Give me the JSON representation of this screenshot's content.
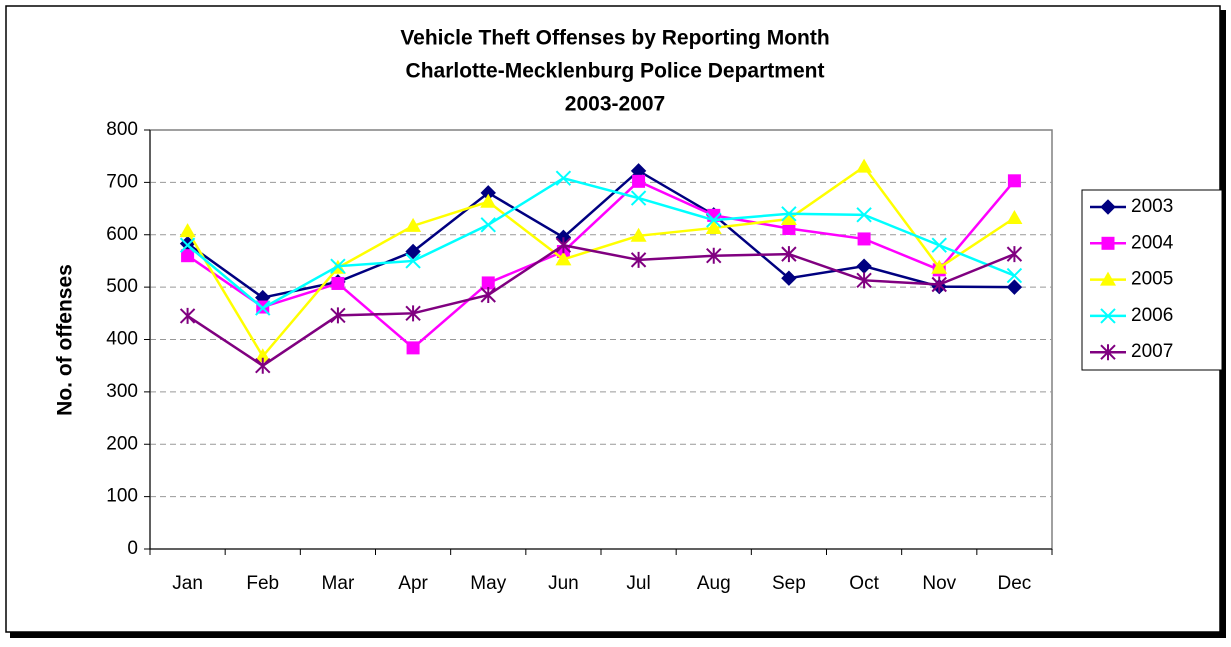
{
  "chart_data": {
    "type": "line",
    "title": [
      "Vehicle Theft Offenses by Reporting Month",
      "Charlotte-Mecklenburg Police Department",
      "2003-2007"
    ],
    "y_label": "No. of offenses",
    "categories": [
      "Jan",
      "Feb",
      "Mar",
      "Apr",
      "May",
      "Jun",
      "Jul",
      "Aug",
      "Sep",
      "Oct",
      "Nov",
      "Dec"
    ],
    "ylim": [
      0,
      800
    ],
    "yticks": [
      0,
      100,
      200,
      300,
      400,
      500,
      600,
      700,
      800
    ],
    "grid": true,
    "legend": "right",
    "series": [
      {
        "name": "2003",
        "color": "#000080",
        "marker": "diamond",
        "values": [
          583,
          480,
          510,
          568,
          680,
          595,
          722,
          638,
          517,
          540,
          501,
          500
        ]
      },
      {
        "name": "2004",
        "color": "#ff00ff",
        "marker": "square",
        "values": [
          560,
          462,
          507,
          384,
          508,
          568,
          702,
          637,
          612,
          592,
          533,
          703
        ]
      },
      {
        "name": "2005",
        "color": "#ffff00",
        "marker": "triangle",
        "values": [
          607,
          368,
          537,
          617,
          663,
          553,
          598,
          613,
          630,
          730,
          537,
          632
        ]
      },
      {
        "name": "2006",
        "color": "#00ffff",
        "marker": "x",
        "values": [
          580,
          460,
          540,
          550,
          619,
          708,
          670,
          628,
          640,
          638,
          580,
          522
        ]
      },
      {
        "name": "2007",
        "color": "#800080",
        "marker": "star",
        "values": [
          445,
          350,
          446,
          450,
          485,
          580,
          552,
          560,
          563,
          513,
          505,
          563
        ]
      }
    ]
  }
}
